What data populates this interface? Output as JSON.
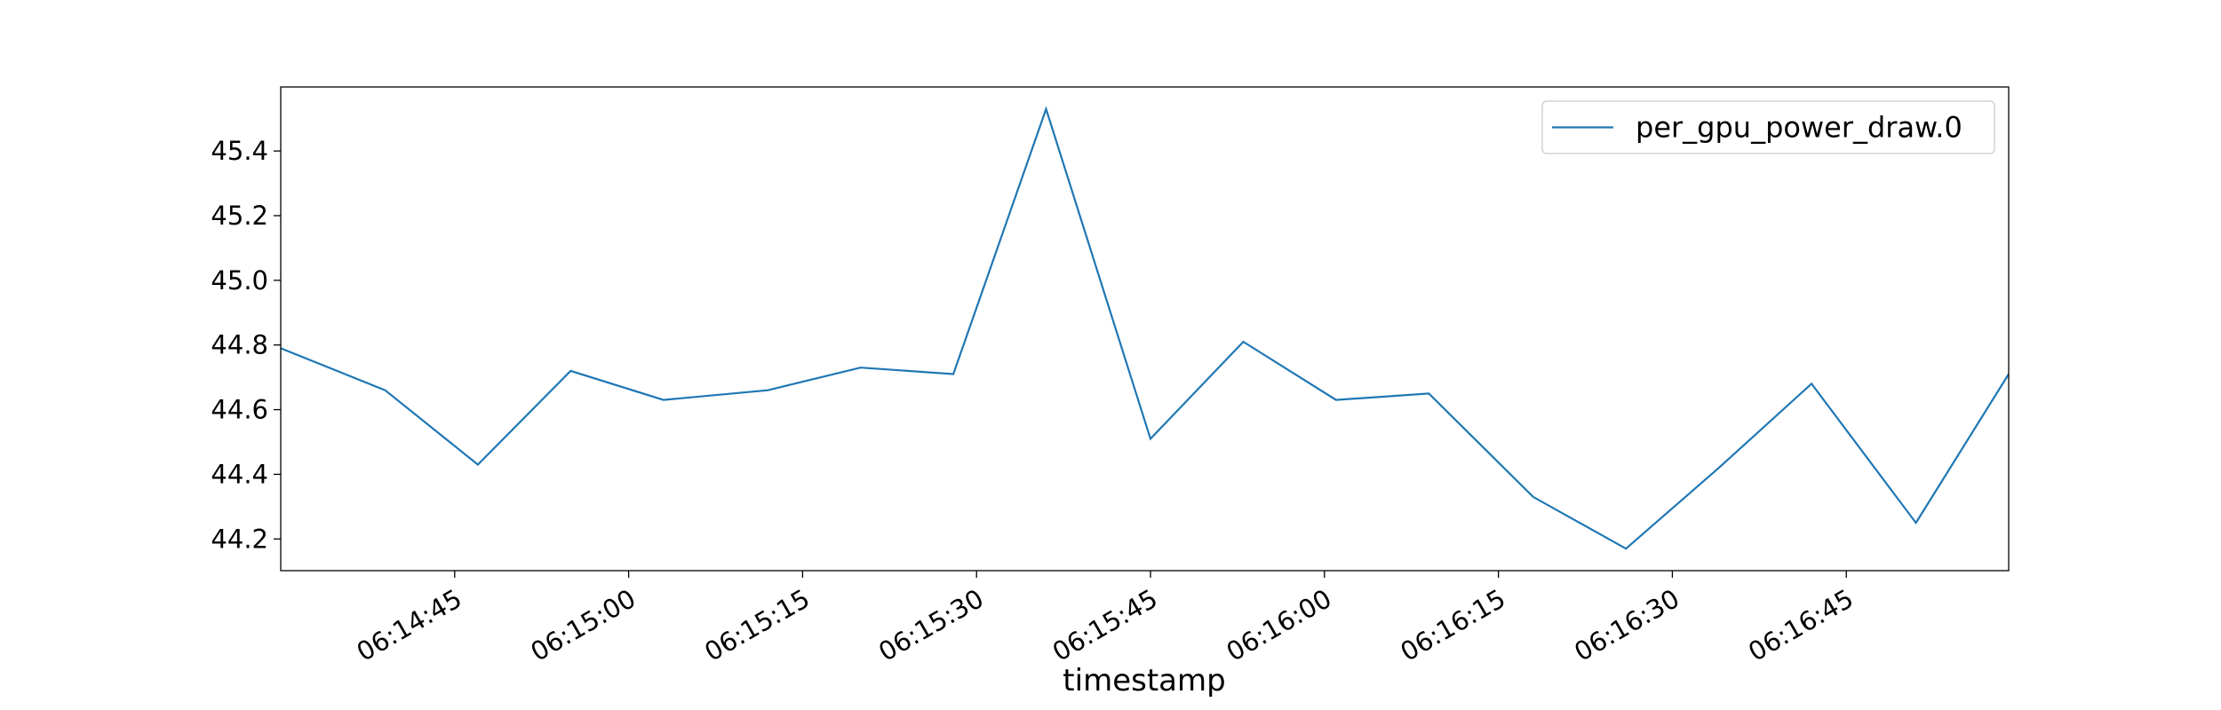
{
  "chart_data": {
    "type": "line",
    "x_label": "timestamp",
    "x": [
      "06:14:30",
      "06:14:39",
      "06:14:47",
      "06:14:55",
      "06:15:03",
      "06:15:12",
      "06:15:20",
      "06:15:28",
      "06:15:36",
      "06:15:45",
      "06:15:53",
      "06:16:01",
      "06:16:09",
      "06:16:18",
      "06:16:26",
      "06:16:34",
      "06:16:42",
      "06:16:51",
      "06:16:59"
    ],
    "series": [
      {
        "name": "per_gpu_power_draw.0",
        "color": "#1f77b4",
        "values": [
          44.79,
          44.66,
          44.43,
          44.72,
          44.63,
          44.66,
          44.73,
          44.71,
          45.53,
          44.51,
          44.81,
          44.63,
          44.65,
          44.33,
          44.17,
          44.42,
          44.68,
          44.25,
          44.71
        ]
      }
    ],
    "xlim": [
      "06:14:30",
      "06:16:59"
    ],
    "xticks": [
      "06:14:45",
      "06:15:00",
      "06:15:15",
      "06:15:30",
      "06:15:45",
      "06:16:00",
      "06:16:15",
      "06:16:30",
      "06:16:45"
    ],
    "ylim": [
      44.102,
      45.598
    ],
    "yticks": [
      44.2,
      44.4,
      44.6,
      44.8,
      {
        "value": 45,
        "label": "45.0"
      },
      45.2,
      45.4
    ],
    "grid": false,
    "legend": "upper right"
  }
}
